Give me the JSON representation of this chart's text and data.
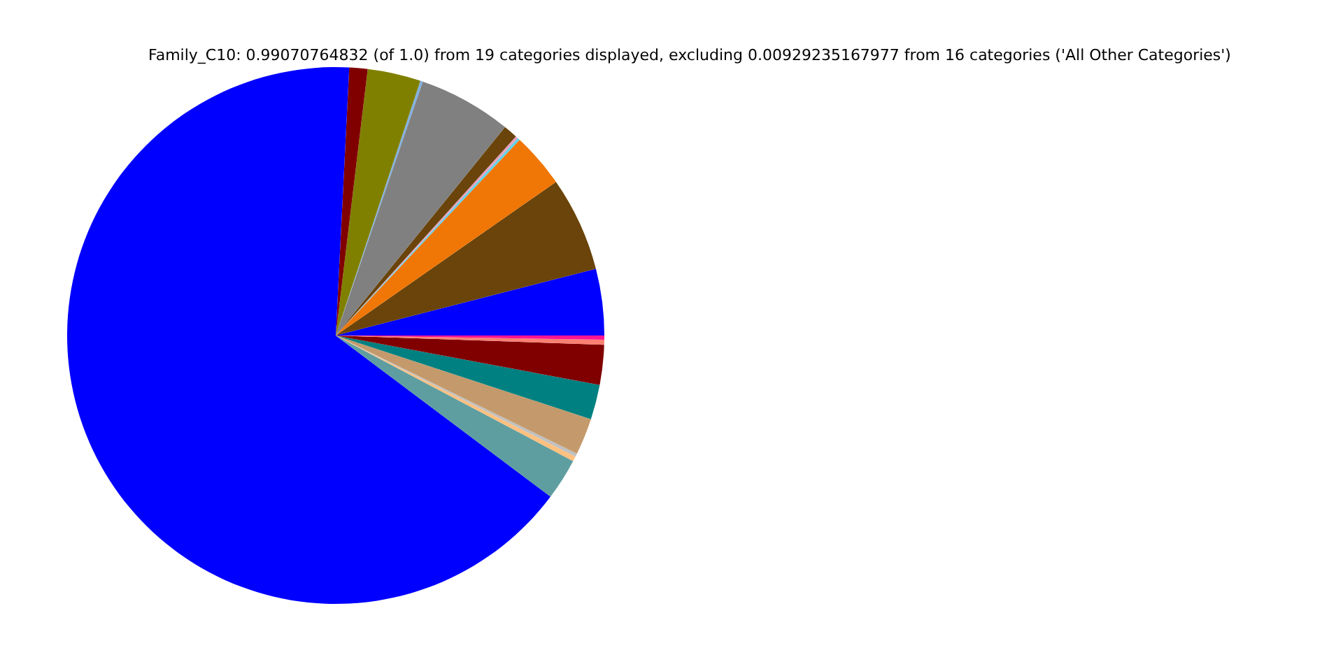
{
  "chart_data": {
    "type": "pie",
    "title": "Family_C10: 0.99070764832 (of 1.0) from 19 categories displayed, excluding 0.00929235167977 from 16 categories ('All Other Categories')",
    "categories": [
      null,
      null,
      null,
      null,
      null,
      null,
      null,
      null,
      null,
      null,
      null,
      null,
      null,
      null,
      null,
      null,
      null,
      null,
      null
    ],
    "values": [
      4.0,
      5.7,
      3.3,
      0.15,
      0.15,
      0.85,
      5.6,
      0.15,
      3.2,
      1.1,
      65.55,
      2.5,
      0.3,
      0.2,
      2.2,
      2.1,
      2.4,
      0.3,
      0.25
    ],
    "colors": [
      "#0000ff",
      "#6a440a",
      "#f07605",
      "#5fd3e6",
      "#e8a0c0",
      "#6a440a",
      "#808080",
      "#80b0e0",
      "#808000",
      "#800000",
      "#0000ff",
      "#5f9ea0",
      "#ffc080",
      "#c0c0c0",
      "#c49a6c",
      "#008080",
      "#800000",
      "#fa8072",
      "#ff1493"
    ]
  }
}
